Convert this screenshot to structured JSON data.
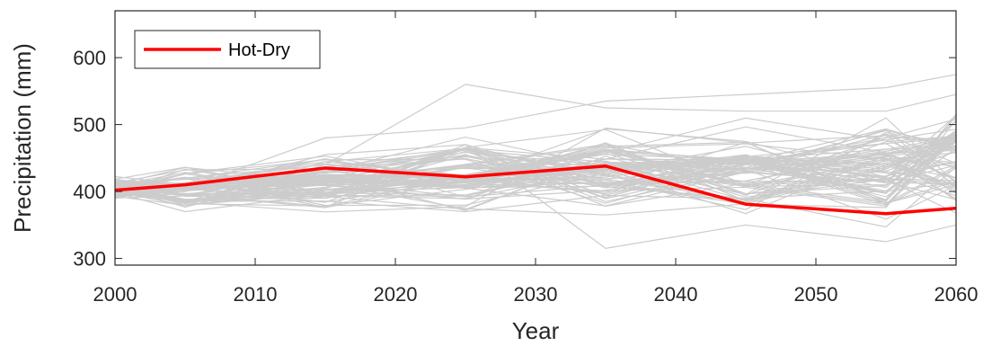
{
  "chart_data": {
    "type": "line",
    "xlabel": "Year",
    "ylabel": "Precipitation (mm)",
    "xlim": [
      2000,
      2060
    ],
    "ylim": [
      290,
      670
    ],
    "xticks": [
      2000,
      2010,
      2020,
      2030,
      2040,
      2050,
      2060
    ],
    "yticks": [
      300,
      400,
      500,
      600
    ],
    "grid": false,
    "legend_position": "top-left",
    "x": [
      2000,
      2005,
      2015,
      2025,
      2035,
      2045,
      2055,
      2060
    ],
    "series": [
      {
        "name": "Hot-Dry",
        "color": "#ff0000",
        "values": [
          402,
          410,
          435,
          422,
          438,
          381,
          367,
          375
        ]
      }
    ],
    "ensemble": {
      "color": "#cccccc",
      "description_count": 80,
      "envelope_low": [
        385,
        365,
        360,
        355,
        340,
        340,
        335,
        345
      ],
      "envelope_high": [
        430,
        440,
        470,
        490,
        510,
        520,
        540,
        560
      ],
      "highlighted_values": [
        [
          410,
          420,
          440,
          560,
          525,
          520,
          520,
          545
        ],
        [
          400,
          405,
          480,
          495,
          535,
          545,
          555,
          575
        ],
        [
          395,
          400,
          455,
          470,
          315,
          350,
          325,
          350
        ]
      ]
    }
  }
}
